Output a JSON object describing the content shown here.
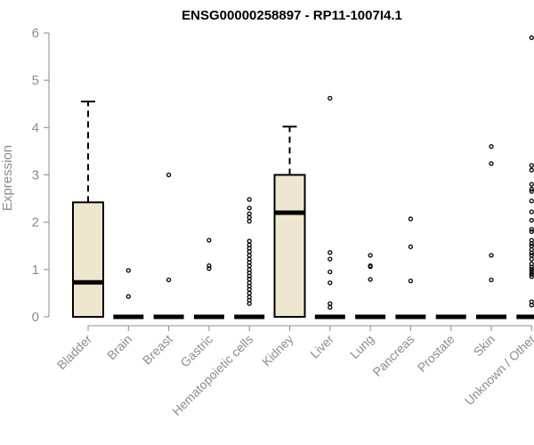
{
  "chart_data": {
    "type": "boxplot",
    "title": "ENSG00000258897 - RP11-1007I4.1",
    "xlabel": "",
    "ylabel": "Expression",
    "ylim": [
      0,
      6
    ],
    "yticks": [
      0,
      1,
      2,
      3,
      4,
      5,
      6
    ],
    "box_color": "#ede7cf",
    "median_color": "#000000",
    "categories": [
      "Bladder",
      "Brain",
      "Breast",
      "Gastric",
      "Hematopoietic cells",
      "Kidney",
      "Liver",
      "Lung",
      "Pancreas",
      "Prostate",
      "Skin",
      "Unknown / Other"
    ],
    "boxes": [
      {
        "q1": 0,
        "median": 0.73,
        "q3": 2.42,
        "whisker_low": 0,
        "whisker_high": 4.55,
        "outliers": []
      },
      {
        "q1": 0,
        "median": 0,
        "q3": 0,
        "whisker_low": 0,
        "whisker_high": 0,
        "outliers": [
          0.98,
          0.43
        ]
      },
      {
        "q1": 0,
        "median": 0,
        "q3": 0,
        "whisker_low": 0,
        "whisker_high": 0,
        "outliers": [
          3.0,
          0.78
        ]
      },
      {
        "q1": 0,
        "median": 0,
        "q3": 0,
        "whisker_low": 0,
        "whisker_high": 0,
        "outliers": [
          1.62,
          1.08,
          1.02
        ]
      },
      {
        "q1": 0,
        "median": 0,
        "q3": 0,
        "whisker_low": 0,
        "whisker_high": 0,
        "outliers": [
          2.48,
          2.3,
          2.18,
          2.1,
          2.02,
          1.6,
          1.52,
          1.45,
          1.38,
          1.3,
          1.22,
          1.15,
          1.08,
          1.0,
          0.93,
          0.86,
          0.8,
          0.72,
          0.65,
          0.58,
          0.5,
          0.42,
          0.35,
          0.28
        ]
      },
      {
        "q1": 0,
        "median": 2.2,
        "q3": 3.0,
        "whisker_low": 0,
        "whisker_high": 4.02,
        "outliers": []
      },
      {
        "q1": 0,
        "median": 0,
        "q3": 0,
        "whisker_low": 0,
        "whisker_high": 0,
        "outliers": [
          4.62,
          1.36,
          1.22,
          0.95,
          0.72,
          0.28,
          0.2
        ]
      },
      {
        "q1": 0,
        "median": 0,
        "q3": 0,
        "whisker_low": 0,
        "whisker_high": 0,
        "outliers": [
          1.3,
          1.08,
          1.06,
          0.79
        ]
      },
      {
        "q1": 0,
        "median": 0,
        "q3": 0,
        "whisker_low": 0,
        "whisker_high": 0,
        "outliers": [
          2.07,
          1.48,
          0.76
        ]
      },
      {
        "q1": 0,
        "median": 0,
        "q3": 0,
        "whisker_low": 0,
        "whisker_high": 0,
        "outliers": []
      },
      {
        "q1": 0,
        "median": 0,
        "q3": 0,
        "whisker_low": 0,
        "whisker_high": 0,
        "outliers": [
          3.6,
          3.24,
          1.3,
          0.78
        ]
      },
      {
        "q1": 0,
        "median": 0,
        "q3": 0,
        "whisker_low": 0,
        "whisker_high": 0,
        "outliers": [
          5.9,
          3.2,
          3.1,
          2.8,
          2.7,
          2.65,
          2.45,
          2.22,
          2.04,
          1.85,
          1.8,
          1.62,
          1.55,
          1.5,
          1.42,
          1.35,
          1.3,
          1.22,
          1.12,
          1.05,
          1.0,
          0.95,
          0.9,
          0.85,
          0.32,
          0.25
        ]
      }
    ]
  }
}
